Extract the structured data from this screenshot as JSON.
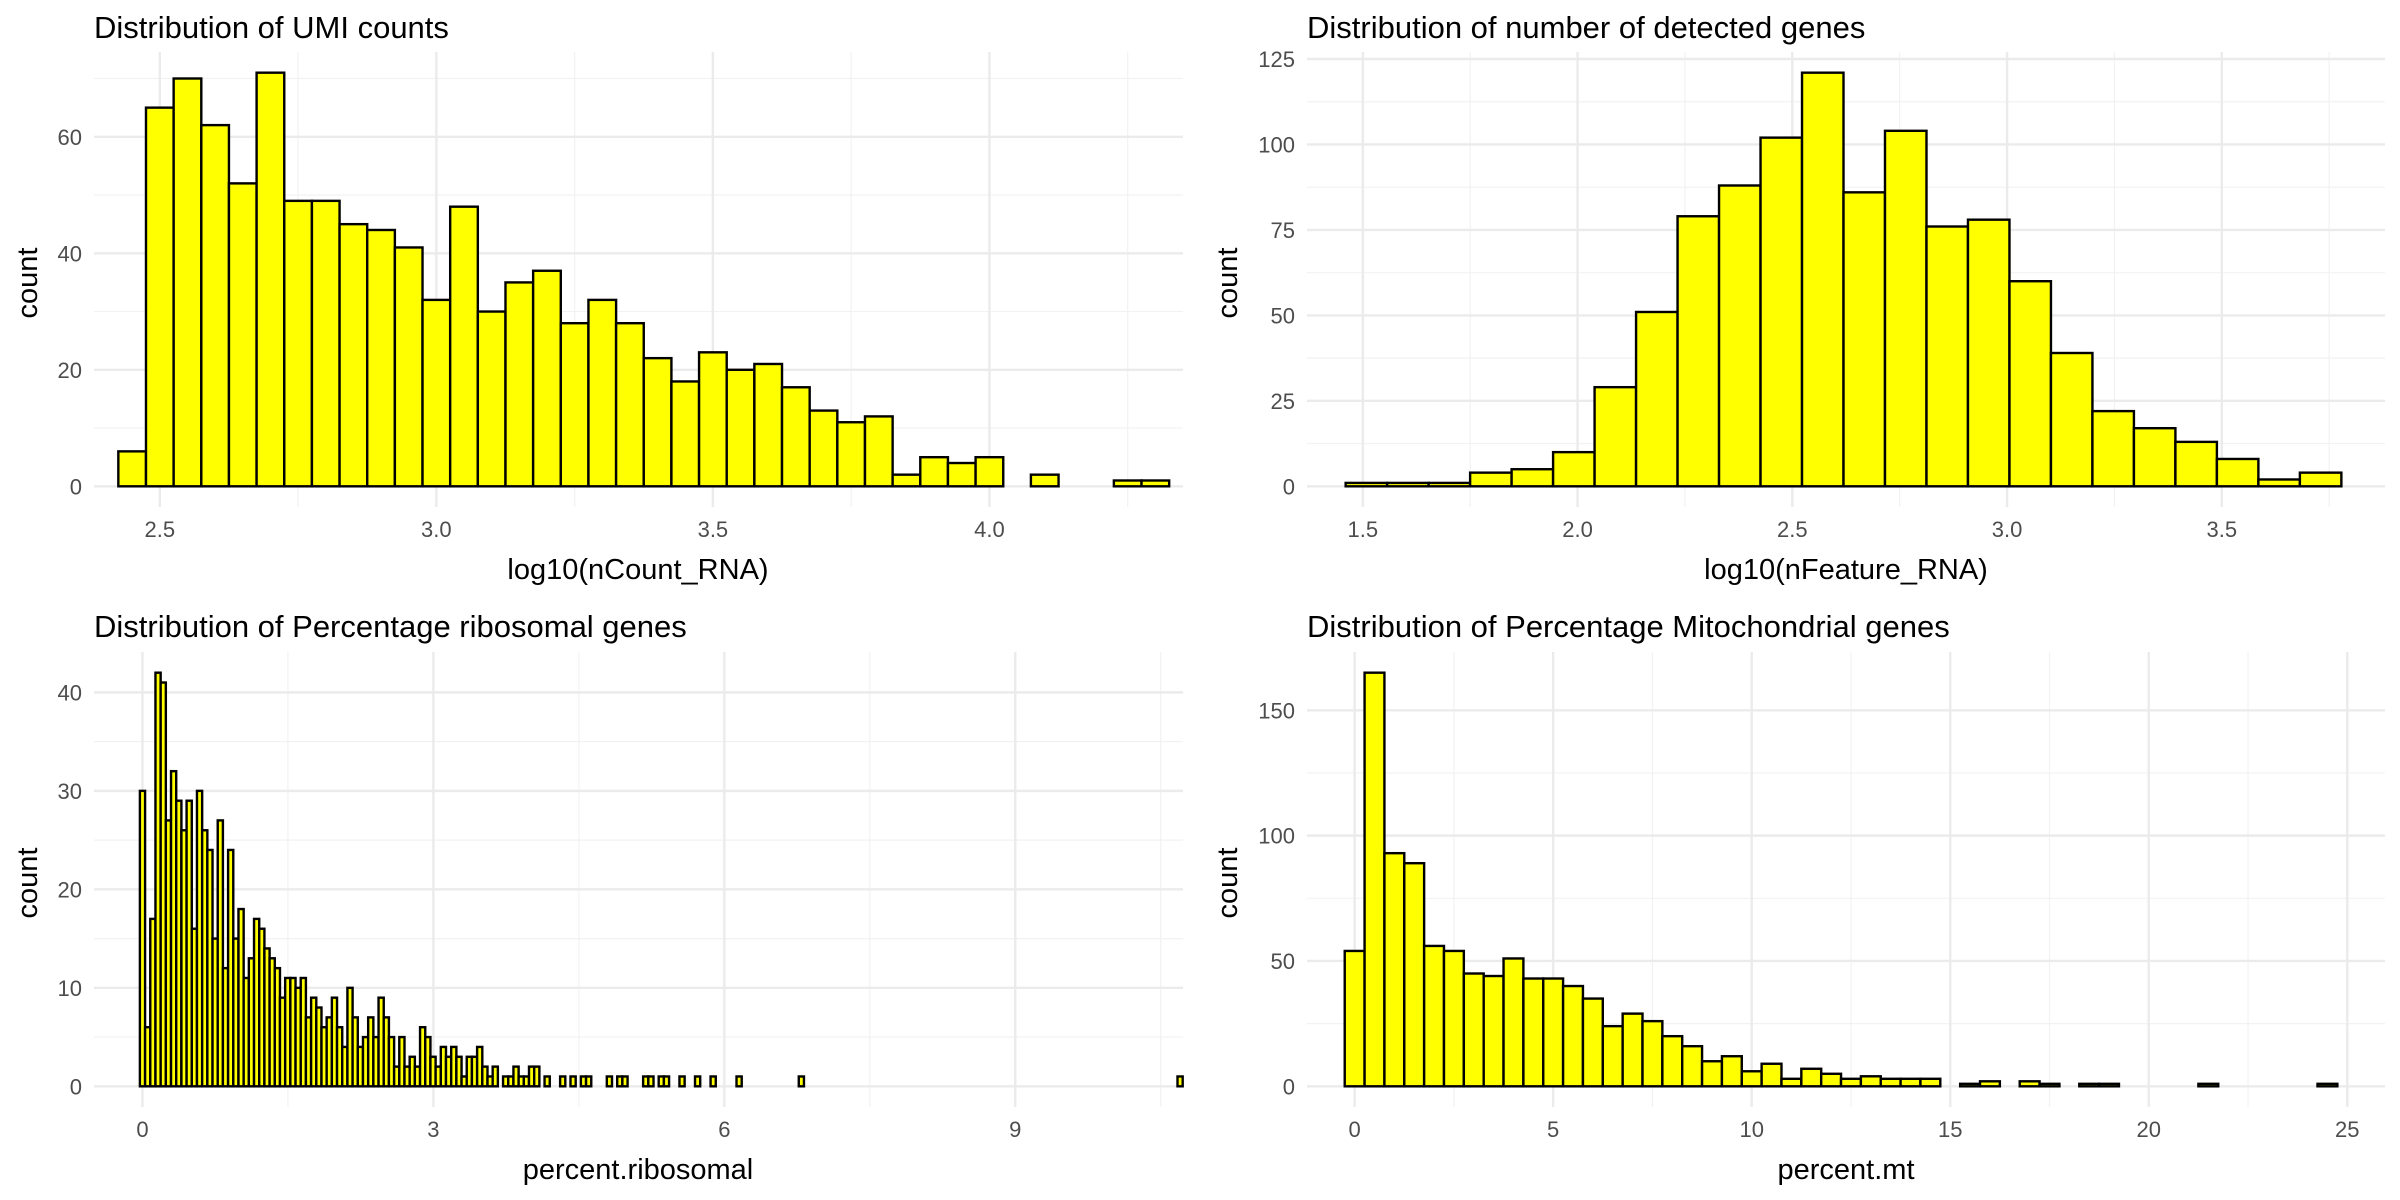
{
  "chart_data": [
    {
      "type": "bar",
      "title": "Distribution of UMI counts",
      "xlabel": "log10(nCount_RNA)",
      "ylabel": "count",
      "xlim": [
        2.381,
        4.35
      ],
      "ylim": [
        -3.55,
        74.55
      ],
      "xticks": [
        2.5,
        3.0,
        3.5,
        4.0
      ],
      "xtick_labels": [
        "2.5",
        "3.0",
        "3.5",
        "4.0"
      ],
      "yticks": [
        0,
        20,
        40,
        60
      ],
      "ytick_labels": [
        "0",
        "20",
        "40",
        "60"
      ],
      "bin_start": 2.425,
      "bin_width": 0.05,
      "values": [
        6,
        65,
        70,
        62,
        52,
        71,
        49,
        49,
        45,
        44,
        41,
        32,
        48,
        30,
        35,
        37,
        28,
        32,
        28,
        22,
        18,
        23,
        20,
        21,
        17,
        13,
        11,
        12,
        2,
        5,
        4,
        5,
        0,
        2,
        0,
        0,
        1,
        1
      ],
      "fill_color": "#ffff00",
      "outline_color": "#000000",
      "grid": true
    },
    {
      "type": "bar",
      "title": "Distribution of number of detected genes",
      "xlabel": "log10(nFeature_RNA)",
      "ylabel": "count",
      "xlim": [
        1.37,
        3.88
      ],
      "ylim": [
        -6.05,
        127.05
      ],
      "xticks": [
        1.5,
        2.0,
        2.5,
        3.0,
        3.5
      ],
      "xtick_labels": [
        "1.5",
        "2.0",
        "2.5",
        "3.0",
        "3.5"
      ],
      "yticks": [
        0,
        25,
        50,
        75,
        100,
        125
      ],
      "ytick_labels": [
        "0",
        "25",
        "50",
        "75",
        "100",
        "125"
      ],
      "bin_start": 1.46,
      "bin_width": 0.0966,
      "values": [
        1,
        1,
        1,
        4,
        5,
        10,
        29,
        51,
        79,
        88,
        102,
        121,
        86,
        104,
        76,
        78,
        60,
        39,
        22,
        17,
        13,
        8,
        2,
        4
      ],
      "fill_color": "#ffff00",
      "outline_color": "#000000",
      "grid": true
    },
    {
      "type": "bar",
      "title": "Distribution of Percentage ribosomal genes",
      "xlabel": "percent.ribosomal",
      "ylabel": "count",
      "xlim": [
        -0.5,
        10.73
      ],
      "ylim": [
        -2.1,
        44.1
      ],
      "xticks": [
        0,
        3,
        6,
        9
      ],
      "xtick_labels": [
        "0",
        "3",
        "6",
        "9"
      ],
      "yticks": [
        0,
        10,
        20,
        30,
        40
      ],
      "ytick_labels": [
        "0",
        "10",
        "20",
        "30",
        "40"
      ],
      "bin_start": -0.0267,
      "bin_width": 0.0535,
      "values": [
        30,
        6,
        17,
        42,
        41,
        27,
        32,
        29,
        26,
        29,
        16,
        30,
        26,
        24,
        15,
        27,
        12,
        24,
        15,
        18,
        11,
        13,
        17,
        16,
        14,
        13,
        12,
        9,
        11,
        11,
        10,
        11,
        7,
        9,
        8,
        6,
        7,
        9,
        6,
        4,
        10,
        7,
        4,
        5,
        7,
        5,
        9,
        7,
        5,
        2,
        5,
        2,
        3,
        2,
        6,
        5,
        3,
        2,
        4,
        3,
        4,
        3,
        1,
        3,
        3,
        4,
        2,
        1,
        2,
        0,
        1,
        1,
        2,
        1,
        1,
        2,
        2,
        0,
        1,
        0,
        0,
        1,
        0,
        1,
        0,
        1,
        1,
        0,
        0,
        0,
        1,
        0,
        1,
        1,
        0,
        0,
        0,
        1,
        1,
        0,
        1,
        1,
        0,
        0,
        1,
        0,
        0,
        1,
        0,
        0,
        1,
        0,
        0,
        0,
        0,
        1,
        0,
        0,
        0,
        0,
        0,
        0,
        0,
        0,
        0,
        0,
        0,
        1,
        0,
        0,
        0,
        0,
        0,
        0,
        0,
        0,
        0,
        0,
        0,
        0,
        0,
        0,
        0,
        0,
        0,
        0,
        0,
        0,
        0,
        0,
        0,
        0,
        0,
        0,
        0,
        0,
        0,
        0,
        0,
        0,
        0,
        0,
        0,
        0,
        0,
        0,
        0,
        0,
        0,
        0,
        0,
        0,
        0,
        0,
        0,
        0,
        0,
        0,
        0,
        0,
        0,
        0,
        0,
        0,
        0,
        0,
        0,
        0,
        0,
        0,
        0,
        0,
        0,
        0,
        0,
        0,
        0,
        0,
        0,
        0,
        1
      ],
      "fill_color": "#ffff00",
      "outline_color": "#000000",
      "grid": true
    },
    {
      "type": "bar",
      "title": "Distribution of Percentage Mitochondrial genes",
      "xlabel": "percent.mt",
      "ylabel": "count",
      "xlim": [
        -1.2,
        25.95
      ],
      "ylim": [
        -8.25,
        173.25
      ],
      "xticks": [
        0,
        5,
        10,
        15,
        20,
        25
      ],
      "xtick_labels": [
        "0",
        "5",
        "10",
        "15",
        "20",
        "25"
      ],
      "yticks": [
        0,
        50,
        100,
        150
      ],
      "ytick_labels": [
        "0",
        "50",
        "100",
        "150"
      ],
      "bin_start": -0.25,
      "bin_width": 0.5,
      "values": [
        54,
        165,
        93,
        89,
        56,
        54,
        45,
        44,
        51,
        43,
        43,
        40,
        35,
        24,
        29,
        26,
        20,
        16,
        10,
        12,
        6,
        9,
        3,
        7,
        5,
        3,
        4,
        3,
        3,
        3,
        0,
        1,
        2,
        0,
        2,
        1,
        0,
        1,
        1,
        0,
        0,
        0,
        0,
        1,
        0,
        0,
        0,
        0,
        0,
        1
      ],
      "fill_color": "#ffff00",
      "outline_color": "#000000",
      "grid": true
    }
  ]
}
